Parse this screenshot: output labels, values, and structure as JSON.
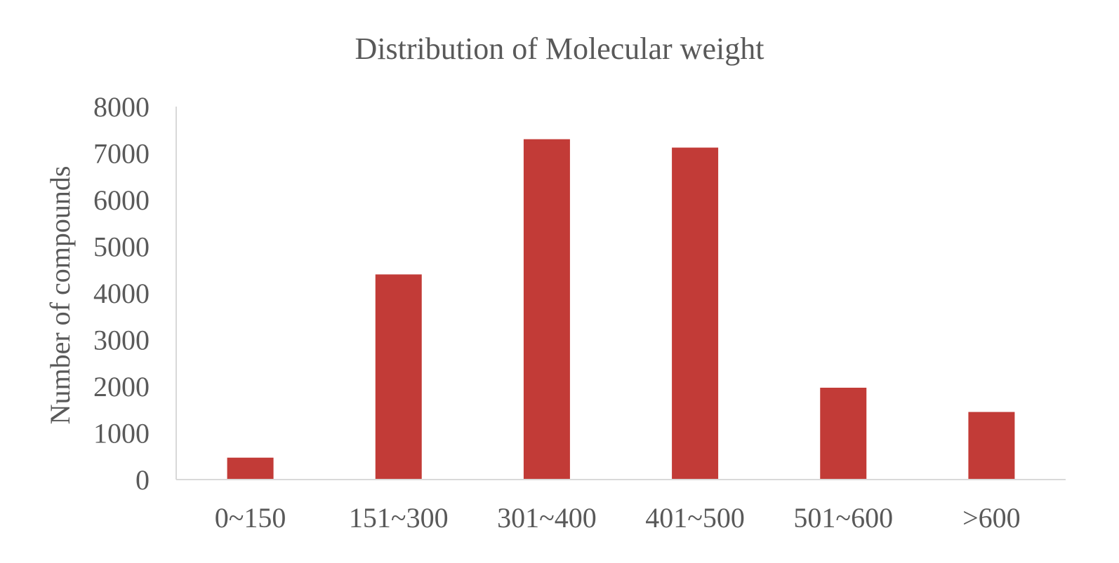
{
  "chart_data": {
    "type": "bar",
    "title": "Distribution of Molecular weight",
    "xlabel": "",
    "ylabel": "Number of compounds",
    "categories": [
      "0~150",
      "151~300",
      "301~400",
      "401~500",
      "501~600",
      ">600"
    ],
    "values": [
      470,
      4400,
      7300,
      7120,
      1970,
      1450
    ],
    "ylim": [
      0,
      8000
    ],
    "yticks": [
      0,
      1000,
      2000,
      3000,
      4000,
      5000,
      6000,
      7000,
      8000
    ],
    "grid": false,
    "legend": "none",
    "bar_color": "#c23b37"
  }
}
